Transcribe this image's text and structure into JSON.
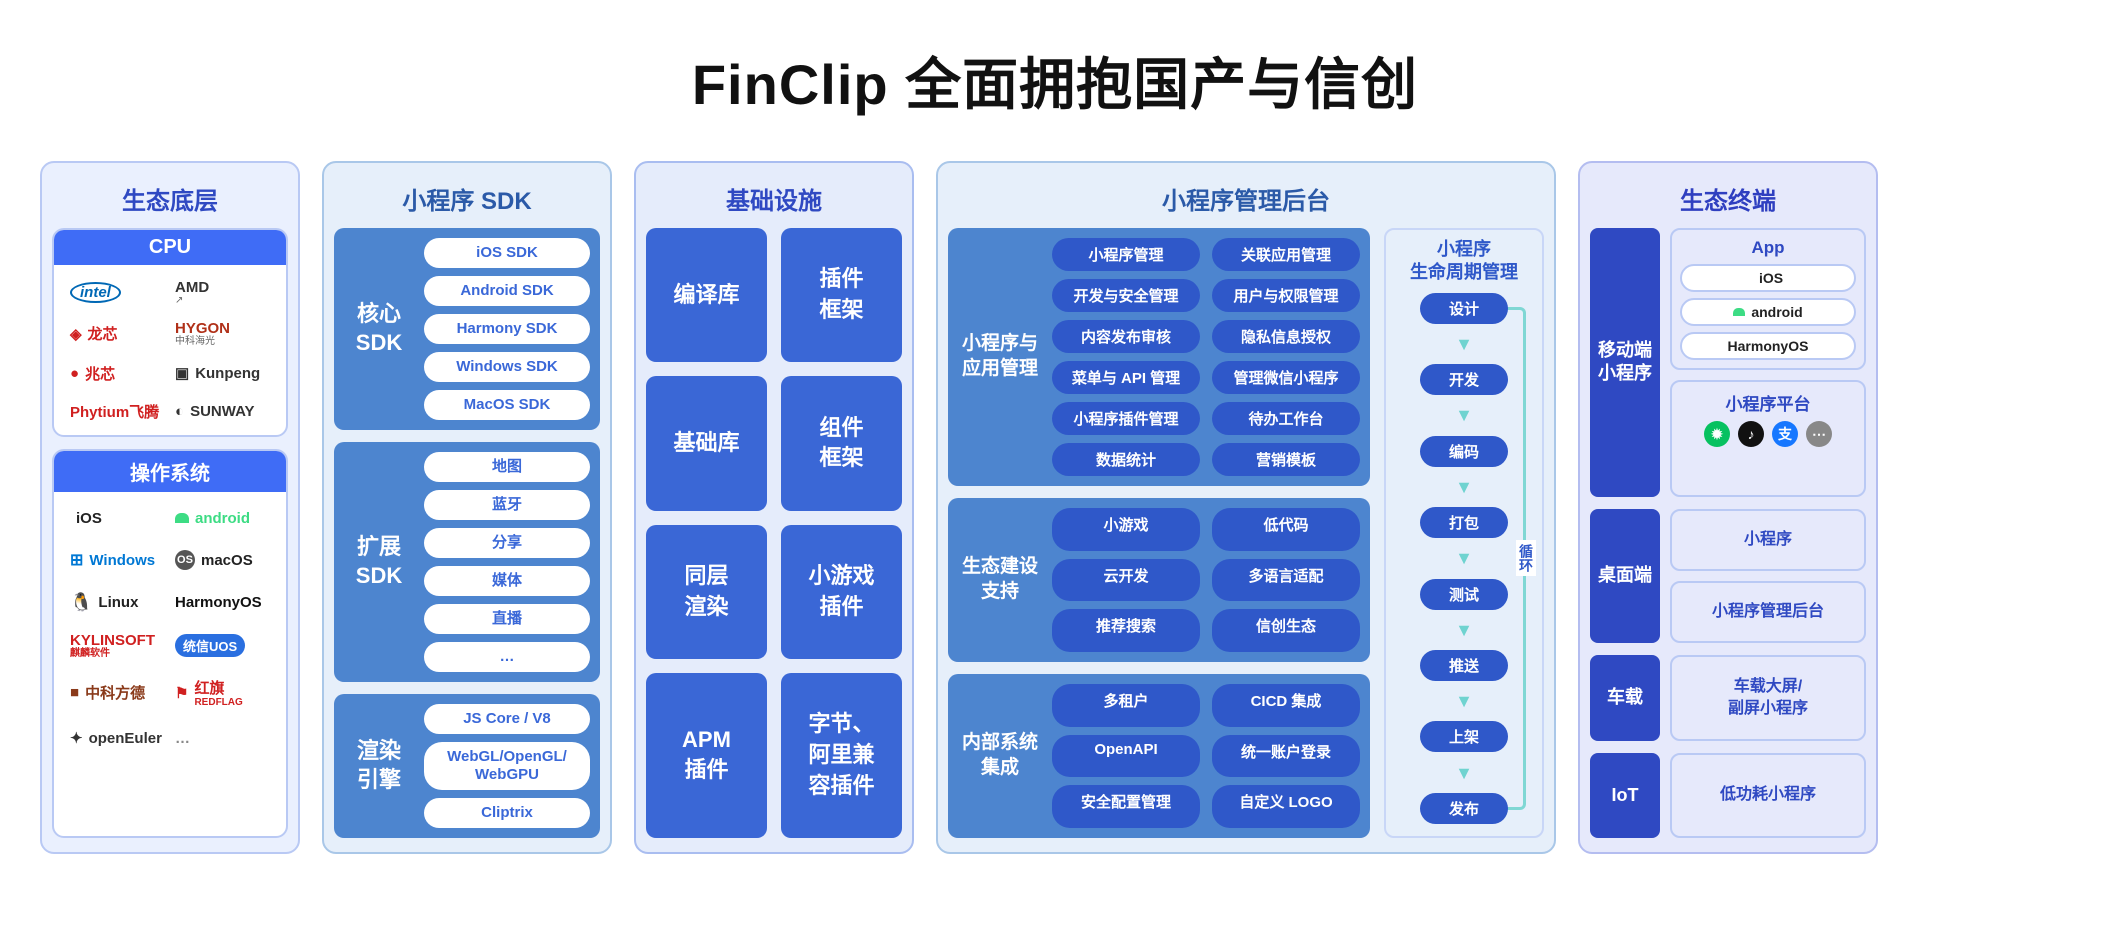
{
  "title": "FinClip 全面拥抱国产与信创",
  "colors": {
    "col1_bg": "#eaf0fe",
    "col1_border": "#b9c9f4",
    "col1_header": "#2f49c2",
    "col2_bg": "#e6effa",
    "col2_border": "#a9c7e8",
    "col2_header": "#2b5aa8",
    "col3_bg": "#e5ecfb",
    "col3_border": "#a9bdf0",
    "col3_header": "#2f49c2",
    "col4_bg": "#e6effa",
    "col4_border": "#a9c7e8",
    "col4_header": "#2b5aa8",
    "col5_bg": "#e6e9fb",
    "col5_border": "#b4bdf0",
    "col5_header": "#2f3fc0",
    "panel_border": "#b9c9f4",
    "strip_bg": "#3f6cf6",
    "sdk_block_bg": "#4d85cf",
    "sdk_pill_bg": "#ffffff",
    "sdk_pill_fg": "#3a68d8",
    "infra_cell_bg": "#3a67d6",
    "mgmt_pill_bg": "#2f58c9",
    "dark_indigo": "#2f49c2",
    "arrow": "#6fd3d0"
  },
  "col1": {
    "header": "生态底层",
    "cpu_title": "CPU",
    "cpu_items": [
      {
        "label": "intel",
        "style": "blue-oval"
      },
      {
        "label": "AMD",
        "sub": "↗",
        "color": "#333"
      },
      {
        "label": "龙芯",
        "color": "#d02020",
        "icon": "◈"
      },
      {
        "label": "HYGON",
        "sub": "中科海光",
        "color": "#b03018"
      },
      {
        "label": "兆芯",
        "color": "#d02020",
        "icon": "●"
      },
      {
        "label": "Kunpeng",
        "icon": "▣",
        "color": "#333"
      },
      {
        "label": "Phytium飞腾",
        "color": "#d02020"
      },
      {
        "label": "SUNWAY",
        "icon": "◐",
        "color": "#333"
      }
    ],
    "os_title": "操作系统",
    "os_items": [
      {
        "label": "iOS",
        "icon": "apple"
      },
      {
        "label": "android",
        "icon": "android",
        "color": "#3ddc84"
      },
      {
        "label": "Windows",
        "icon": "windows",
        "color": "#0078d4"
      },
      {
        "label": "macOS",
        "icon": "os-badge"
      },
      {
        "label": "Linux",
        "icon": "tux"
      },
      {
        "label": "HarmonyOS",
        "color": "#111"
      },
      {
        "label": "KYLINSOFT",
        "sub": "麒麟软件",
        "color": "#d02020"
      },
      {
        "label": "统信UOS",
        "style": "uos-badge"
      },
      {
        "label": "中科方德",
        "icon": "■",
        "color": "#8a3a1a"
      },
      {
        "label": "红旗",
        "sub": "REDFLAG",
        "color": "#d02020",
        "icon": "⚑"
      },
      {
        "label": "openEuler",
        "icon": "✦",
        "color": "#333"
      },
      {
        "label": "…",
        "color": "#888"
      }
    ]
  },
  "col2": {
    "header": "小程序 SDK",
    "blocks": [
      {
        "side": "核心\nSDK",
        "pills": [
          "iOS SDK",
          "Android SDK",
          "Harmony SDK",
          "Windows SDK",
          "MacOS SDK"
        ]
      },
      {
        "side": "扩展\nSDK",
        "pills": [
          "地图",
          "蓝牙",
          "分享",
          "媒体",
          "直播",
          "…"
        ]
      },
      {
        "side": "渲染\n引擎",
        "pills": [
          "JS Core / V8",
          "WebGL/OpenGL/\nWebGPU",
          "Cliptrix"
        ]
      }
    ]
  },
  "col3": {
    "header": "基础设施",
    "cells": [
      "编译库",
      "插件\n框架",
      "基础库",
      "组件\n框架",
      "同层\n渲染",
      "小游戏\n插件",
      "APM\n插件",
      "字节、\n阿里兼\n容插件"
    ]
  },
  "col4": {
    "header": "小程序管理后台",
    "blocks": [
      {
        "side": "小程序与\n应用管理",
        "pills": [
          "小程序管理",
          "关联应用管理",
          "开发与安全管理",
          "用户与权限管理",
          "内容发布审核",
          "隐私信息授权",
          "菜单与 API 管理",
          "管理微信小程序",
          "小程序插件管理",
          "待办工作台",
          "数据统计",
          "营销模板"
        ]
      },
      {
        "side": "生态建设\n支持",
        "pills": [
          "小游戏",
          "低代码",
          "云开发",
          "多语言适配",
          "推荐搜索",
          "信创生态"
        ]
      },
      {
        "side": "内部系统\n集成",
        "pills": [
          "多租户",
          "CICD 集成",
          "OpenAPI",
          "统一账户登录",
          "安全配置管理",
          "自定义 LOGO"
        ]
      }
    ],
    "lifecycle": {
      "title": "小程序\n生命周期管理",
      "steps": [
        "设计",
        "开发",
        "编码",
        "打包",
        "测试",
        "推送",
        "上架",
        "发布"
      ],
      "loop_label": "循环"
    }
  },
  "col5": {
    "header": "生态终端",
    "rows": [
      {
        "side": "移动端\n小程序",
        "panels": [
          {
            "type": "app",
            "title": "App",
            "os": [
              "iOS",
              "android",
              "HarmonyOS"
            ]
          },
          {
            "type": "platform",
            "title": "小程序平台",
            "icons": [
              {
                "glyph": "✹",
                "bg": "#07c160"
              },
              {
                "glyph": "♪",
                "bg": "#111"
              },
              {
                "glyph": "支",
                "bg": "#1677ff"
              },
              {
                "glyph": "⋯",
                "bg": "#888"
              }
            ]
          }
        ]
      },
      {
        "side": "桌面端",
        "panels": [
          {
            "type": "plain",
            "title": "小程序"
          },
          {
            "type": "plain",
            "title": "小程序管理后台"
          }
        ]
      },
      {
        "side": "车载",
        "panels": [
          {
            "type": "plain",
            "title": "车载大屏/\n副屏小程序"
          }
        ]
      },
      {
        "side": "IoT",
        "panels": [
          {
            "type": "plain",
            "title": "低功耗小程序"
          }
        ]
      }
    ]
  },
  "widths": {
    "c1": 260,
    "c2": 290,
    "c3": 280,
    "c4": 620,
    "c5": 300
  }
}
